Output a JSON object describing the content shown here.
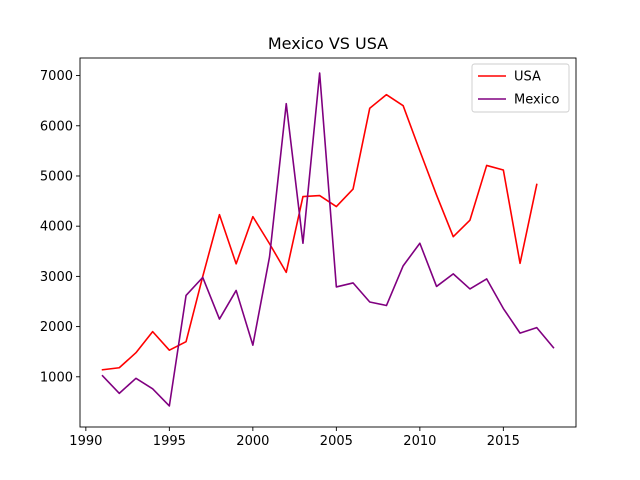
{
  "chart_data": {
    "type": "line",
    "title": "Mexico VS USA",
    "xlabel": "",
    "ylabel": "",
    "xlim": [
      1989.65,
      2019.35
    ],
    "ylim": [
      0,
      7350
    ],
    "xticks": [
      1990,
      1995,
      2000,
      2005,
      2010,
      2015
    ],
    "yticks": [
      1000,
      2000,
      3000,
      4000,
      5000,
      6000,
      7000
    ],
    "grid": false,
    "legend_position": "top-right",
    "series": [
      {
        "name": "USA",
        "color": "#ff0000",
        "x": [
          1991,
          1992,
          1993,
          1994,
          1995,
          1996,
          1997,
          1998,
          1999,
          2000,
          2001,
          2002,
          2003,
          2004,
          2005,
          2006,
          2007,
          2008,
          2009,
          2010,
          2011,
          2012,
          2013,
          2014,
          2015,
          2016,
          2017
        ],
        "y": [
          1140,
          1180,
          1480,
          1900,
          1530,
          1700,
          3000,
          4230,
          3250,
          4190,
          3650,
          3080,
          4590,
          4610,
          4390,
          4740,
          6350,
          6620,
          6400,
          5500,
          4620,
          3790,
          4120,
          5210,
          5120,
          3260,
          4830
        ]
      },
      {
        "name": "Mexico",
        "color": "#800080",
        "x": [
          1991,
          1992,
          1993,
          1994,
          1995,
          1996,
          1997,
          1998,
          1999,
          2000,
          2001,
          2002,
          2003,
          2004,
          2005,
          2006,
          2007,
          2008,
          2009,
          2010,
          2011,
          2012,
          2013,
          2014,
          2015,
          2016,
          2017,
          2018
        ],
        "y": [
          1020,
          670,
          970,
          760,
          420,
          2620,
          2980,
          2150,
          2720,
          1630,
          3390,
          6440,
          3660,
          7050,
          2790,
          2870,
          2490,
          2420,
          3210,
          3660,
          2800,
          3050,
          2750,
          2950,
          2360,
          1870,
          1980,
          1580
        ]
      }
    ]
  }
}
